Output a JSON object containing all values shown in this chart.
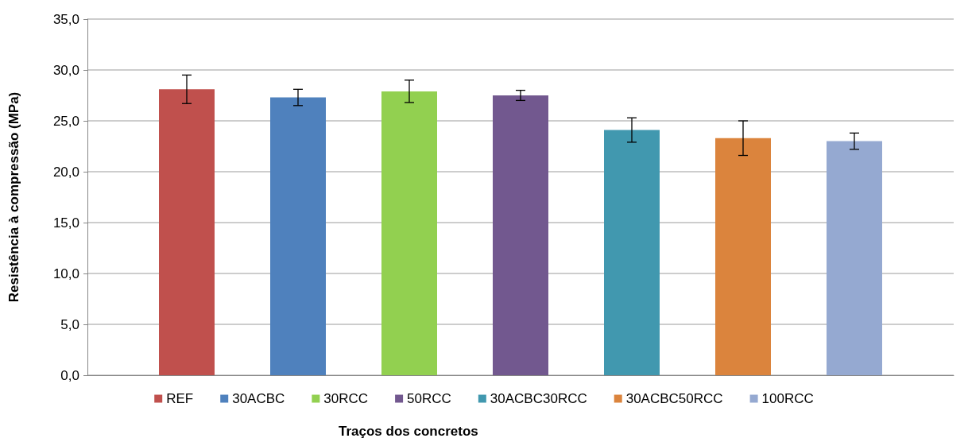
{
  "chart_data": {
    "type": "bar",
    "xlabel": "Traços dos concretos",
    "ylabel": "Resistência à compressão (MPa)",
    "categories": [
      null
    ],
    "series": [
      {
        "name": "REF",
        "color": "#c0504d",
        "values": [
          28.1
        ],
        "errors": [
          1.4
        ]
      },
      {
        "name": "30ACBC",
        "color": "#4f81bd",
        "values": [
          27.3
        ],
        "errors": [
          0.8
        ]
      },
      {
        "name": "30RCC",
        "color": "#92d050",
        "values": [
          27.9
        ],
        "errors": [
          1.1
        ]
      },
      {
        "name": "50RCC",
        "color": "#72588f",
        "values": [
          27.5
        ],
        "errors": [
          0.5
        ]
      },
      {
        "name": "30ACBC30RCC",
        "color": "#4198af",
        "values": [
          24.1
        ],
        "errors": [
          1.2
        ]
      },
      {
        "name": "30ACBC50RCC",
        "color": "#db843d",
        "values": [
          23.3
        ],
        "errors": [
          1.7
        ]
      },
      {
        "name": "100RCC",
        "color": "#95a9d1",
        "values": [
          23.0
        ],
        "errors": [
          0.8
        ]
      }
    ],
    "ylim": [
      0,
      35
    ],
    "yticks": [
      {
        "value": 0,
        "label": "0,0"
      },
      {
        "value": 5,
        "label": "5,0"
      },
      {
        "value": 10,
        "label": "10,0"
      },
      {
        "value": 15,
        "label": "15,0"
      },
      {
        "value": 20,
        "label": "20,0"
      },
      {
        "value": 25,
        "label": "25,0"
      },
      {
        "value": 30,
        "label": "30,0"
      },
      {
        "value": 35,
        "label": "35,0"
      }
    ],
    "grid": "y",
    "legend": "bottom"
  }
}
